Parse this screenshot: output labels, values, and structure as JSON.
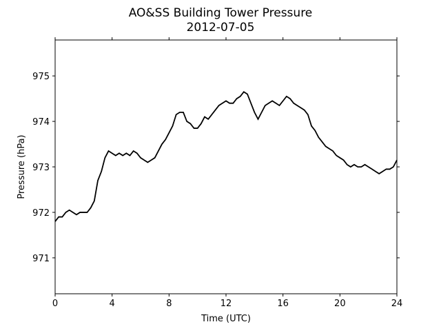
{
  "chart_data": {
    "type": "line",
    "title": "AO&SS Building Tower Pressure",
    "subtitle": "2012-07-05",
    "xlabel": "Time (UTC)",
    "ylabel": "Pressure (hPa)",
    "xlim": [
      0,
      24
    ],
    "xticks": [
      0,
      4,
      8,
      12,
      16,
      20,
      24
    ],
    "ylim": [
      970.21,
      975.79
    ],
    "yticks": [
      971,
      972,
      973,
      974,
      975
    ],
    "x": [
      0,
      0.25,
      0.5,
      0.75,
      1,
      1.25,
      1.5,
      1.75,
      2,
      2.25,
      2.5,
      2.75,
      3,
      3.25,
      3.5,
      3.75,
      4,
      4.25,
      4.5,
      4.75,
      5,
      5.25,
      5.5,
      5.75,
      6,
      6.25,
      6.5,
      6.75,
      7,
      7.25,
      7.5,
      7.75,
      8,
      8.25,
      8.5,
      8.75,
      9,
      9.25,
      9.5,
      9.75,
      10,
      10.25,
      10.5,
      10.75,
      11,
      11.25,
      11.5,
      11.75,
      12,
      12.25,
      12.5,
      12.75,
      13,
      13.25,
      13.5,
      13.75,
      14,
      14.25,
      14.5,
      14.75,
      15,
      15.25,
      15.5,
      15.75,
      16,
      16.25,
      16.5,
      16.75,
      17,
      17.25,
      17.5,
      17.75,
      18,
      18.25,
      18.5,
      18.75,
      19,
      19.25,
      19.5,
      19.75,
      20,
      20.25,
      20.5,
      20.75,
      21,
      21.25,
      21.5,
      21.75,
      22,
      22.25,
      22.5,
      22.75,
      23,
      23.25,
      23.5,
      23.75,
      24
    ],
    "series": [
      {
        "name": "Pressure",
        "color": "#000000",
        "values": [
          971.8,
          971.9,
          971.9,
          972.0,
          972.05,
          972.0,
          971.95,
          972.0,
          972.0,
          972.0,
          972.1,
          972.25,
          972.7,
          972.9,
          973.2,
          973.35,
          973.3,
          973.25,
          973.3,
          973.25,
          973.3,
          973.25,
          973.35,
          973.3,
          973.2,
          973.15,
          973.1,
          973.15,
          973.2,
          973.35,
          973.5,
          973.6,
          973.75,
          973.9,
          974.15,
          974.2,
          974.2,
          974.0,
          973.95,
          973.85,
          973.85,
          973.95,
          974.1,
          974.05,
          974.15,
          974.25,
          974.35,
          974.4,
          974.45,
          974.4,
          974.4,
          974.5,
          974.55,
          974.65,
          974.6,
          974.4,
          974.2,
          974.05,
          974.2,
          974.35,
          974.4,
          974.45,
          974.4,
          974.35,
          974.45,
          974.55,
          974.5,
          974.4,
          974.35,
          974.3,
          974.25,
          974.15,
          973.9,
          973.8,
          973.65,
          973.55,
          973.45,
          973.4,
          973.35,
          973.25,
          973.2,
          973.15,
          973.05,
          973.0,
          973.05,
          973.0,
          973.0,
          973.05,
          973.0,
          972.95,
          972.9,
          972.85,
          972.9,
          972.95,
          972.95,
          973.0,
          973.15
        ]
      }
    ]
  }
}
